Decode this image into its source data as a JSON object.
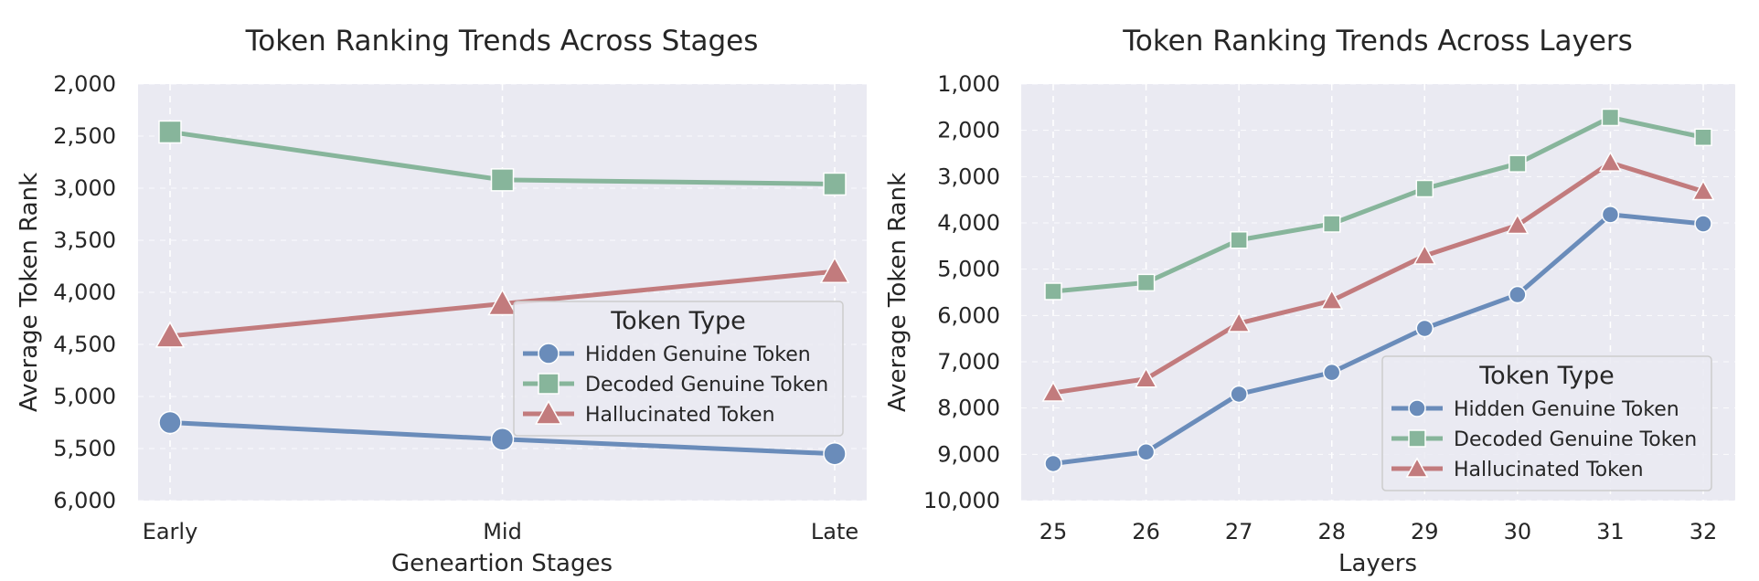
{
  "chart_data": [
    {
      "type": "line",
      "title": "Token Ranking Trends Across Stages",
      "xlabel": "Geneartion Stages",
      "ylabel": "Average Token Rank",
      "categories": [
        "Early",
        "Mid",
        "Late"
      ],
      "y_inverted": true,
      "ylim": [
        2000,
        6000
      ],
      "yticks": [
        2000,
        2500,
        3000,
        3500,
        4000,
        4500,
        5000,
        5500,
        6000
      ],
      "ytick_labels": [
        "2,000",
        "2,500",
        "3,000",
        "3,500",
        "4,000",
        "4,500",
        "5,000",
        "5,500",
        "6,000"
      ],
      "grid": true,
      "legend": {
        "title": "Token Type",
        "placement": "center-right"
      },
      "series": [
        {
          "name": "Hidden Genuine Token",
          "color": "#6a8cba",
          "marker": "circle",
          "values": [
            5250,
            5410,
            5550
          ]
        },
        {
          "name": "Decoded Genuine Token",
          "color": "#87b59b",
          "marker": "square",
          "values": [
            2460,
            2920,
            2960
          ]
        },
        {
          "name": "Hallucinated Token",
          "color": "#c27b7d",
          "marker": "triangle",
          "values": [
            4420,
            4110,
            3800
          ]
        }
      ]
    },
    {
      "type": "line",
      "title": "Token Ranking Trends Across Layers",
      "xlabel": "Layers",
      "ylabel": "Average Token Rank",
      "categories": [
        "25",
        "26",
        "27",
        "28",
        "29",
        "30",
        "31",
        "32"
      ],
      "y_inverted": true,
      "ylim": [
        1000,
        10000
      ],
      "yticks": [
        1000,
        2000,
        3000,
        4000,
        5000,
        6000,
        7000,
        8000,
        9000,
        10000
      ],
      "ytick_labels": [
        "1,000",
        "2,000",
        "3,000",
        "4,000",
        "5,000",
        "6,000",
        "7,000",
        "8,000",
        "9,000",
        "10,000"
      ],
      "grid": true,
      "legend": {
        "title": "Token Type",
        "placement": "lower-right"
      },
      "series": [
        {
          "name": "Hidden Genuine Token",
          "color": "#6a8cba",
          "marker": "circle",
          "values": [
            9200,
            8950,
            7700,
            7230,
            6280,
            5550,
            3820,
            4020
          ]
        },
        {
          "name": "Decoded Genuine Token",
          "color": "#87b59b",
          "marker": "square",
          "values": [
            5480,
            5290,
            4370,
            4020,
            3260,
            2720,
            1720,
            2150
          ]
        },
        {
          "name": "Hallucinated Token",
          "color": "#c27b7d",
          "marker": "triangle",
          "values": [
            7670,
            7370,
            6170,
            5680,
            4710,
            4050,
            2700,
            3320
          ]
        }
      ]
    }
  ]
}
